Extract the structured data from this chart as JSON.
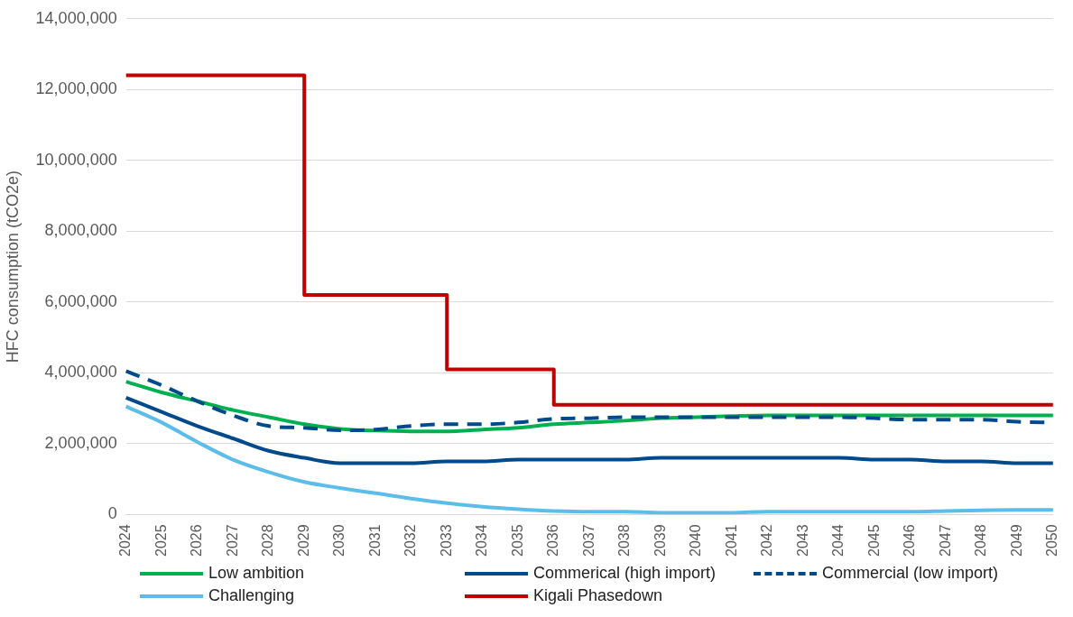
{
  "chart_data": {
    "type": "line",
    "ylabel": "HFC consumption (tCO2e)",
    "categories": [
      "2024",
      "2025",
      "2026",
      "2027",
      "2028",
      "2029",
      "2030",
      "2031",
      "2032",
      "2033",
      "2034",
      "2035",
      "2036",
      "2037",
      "2038",
      "2039",
      "2040",
      "2041",
      "2042",
      "2043",
      "2044",
      "2045",
      "2046",
      "2047",
      "2048",
      "2049",
      "2050"
    ],
    "ylim": [
      0,
      14000000
    ],
    "yticks": [
      {
        "value": 0,
        "label": "0"
      },
      {
        "value": 2000000,
        "label": "2,000,000"
      },
      {
        "value": 4000000,
        "label": "4,000,000"
      },
      {
        "value": 6000000,
        "label": "6,000,000"
      },
      {
        "value": 8000000,
        "label": "8,000,000"
      },
      {
        "value": 10000000,
        "label": "10,000,000"
      },
      {
        "value": 12000000,
        "label": "12,000,000"
      },
      {
        "value": 14000000,
        "label": "14,000,000"
      }
    ],
    "grid": "y",
    "legend": "bottom",
    "marker": "none",
    "series": [
      {
        "name": "Low ambition",
        "color": "#00b050",
        "line_style": "solid",
        "values": [
          3750000,
          3450000,
          3200000,
          2950000,
          2750000,
          2550000,
          2420000,
          2370000,
          2350000,
          2350000,
          2400000,
          2450000,
          2550000,
          2600000,
          2650000,
          2720000,
          2750000,
          2780000,
          2800000,
          2800000,
          2800000,
          2800000,
          2800000,
          2800000,
          2800000,
          2800000,
          2800000
        ]
      },
      {
        "name": "Commerical (high import)",
        "color": "#004a8c",
        "line_style": "solid",
        "values": [
          3300000,
          2900000,
          2500000,
          2150000,
          1800000,
          1600000,
          1450000,
          1450000,
          1450000,
          1500000,
          1500000,
          1550000,
          1550000,
          1550000,
          1550000,
          1600000,
          1600000,
          1600000,
          1600000,
          1600000,
          1600000,
          1550000,
          1550000,
          1500000,
          1500000,
          1450000,
          1450000
        ]
      },
      {
        "name": "Commercial (low import)",
        "color": "#004a8c",
        "line_style": "dashed",
        "values": [
          4050000,
          3650000,
          3200000,
          2800000,
          2500000,
          2450000,
          2380000,
          2400000,
          2500000,
          2550000,
          2550000,
          2600000,
          2700000,
          2720000,
          2750000,
          2750000,
          2750000,
          2750000,
          2750000,
          2750000,
          2750000,
          2720000,
          2680000,
          2680000,
          2680000,
          2620000,
          2600000
        ]
      },
      {
        "name": "Challenging",
        "color": "#5bbde8",
        "line_style": "solid",
        "values": [
          3050000,
          2600000,
          2050000,
          1550000,
          1200000,
          920000,
          750000,
          600000,
          450000,
          320000,
          220000,
          150000,
          100000,
          80000,
          80000,
          50000,
          50000,
          50000,
          80000,
          80000,
          80000,
          80000,
          80000,
          100000,
          120000,
          130000,
          130000
        ]
      },
      {
        "name": "Kigali Phasedown",
        "color": "#c00000",
        "type": "step",
        "line_style": "solid",
        "values": [
          12400000,
          12400000,
          12400000,
          12400000,
          12400000,
          6200000,
          6200000,
          6200000,
          6200000,
          4100000,
          4100000,
          4100000,
          3100000,
          3100000,
          3100000,
          3100000,
          3100000,
          3100000,
          3100000,
          3100000,
          3100000,
          3100000,
          3100000,
          3100000,
          3100000,
          3100000,
          3100000
        ]
      }
    ]
  }
}
